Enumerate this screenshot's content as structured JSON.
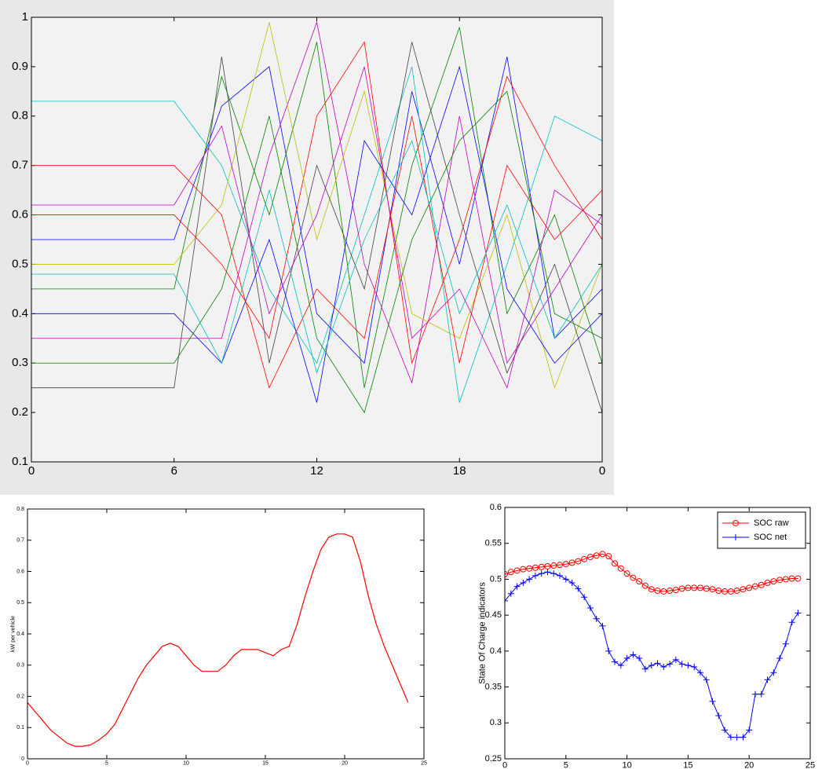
{
  "chart_data": [
    {
      "type": "line",
      "x": [
        0,
        3,
        6,
        8,
        10,
        12,
        14,
        16,
        18,
        20,
        22,
        24
      ],
      "xlim": [
        0,
        24
      ],
      "xticks": [
        0,
        6,
        12,
        18,
        {
          "value": 24,
          "label": "0"
        }
      ],
      "ylim": [
        0.1,
        1
      ],
      "yticks": [
        0.1,
        0.2,
        0.3,
        0.4,
        0.5,
        0.6,
        0.7,
        0.8,
        0.9,
        1
      ],
      "series": [
        {
          "color": "#0000ff",
          "values": [
            0.55,
            0.55,
            0.55,
            0.82,
            0.9,
            0.4,
            0.3,
            0.85,
            0.5,
            0.92,
            0.35,
            0.45
          ]
        },
        {
          "color": "#008000",
          "values": [
            0.45,
            0.45,
            0.45,
            0.88,
            0.6,
            0.95,
            0.25,
            0.7,
            0.98,
            0.4,
            0.6,
            0.3
          ]
        },
        {
          "color": "#ff0000",
          "values": [
            0.6,
            0.6,
            0.6,
            0.5,
            0.35,
            0.8,
            0.95,
            0.3,
            0.55,
            0.88,
            0.7,
            0.55
          ]
        },
        {
          "color": "#00bfbf",
          "values": [
            0.83,
            0.83,
            0.83,
            0.7,
            0.45,
            0.3,
            0.6,
            0.9,
            0.22,
            0.5,
            0.8,
            0.75
          ]
        },
        {
          "color": "#bf00bf",
          "values": [
            0.35,
            0.35,
            0.35,
            0.35,
            0.72,
            0.99,
            0.5,
            0.26,
            0.8,
            0.3,
            0.45,
            0.6
          ]
        },
        {
          "color": "#bfbf00",
          "values": [
            0.5,
            0.5,
            0.5,
            0.62,
            0.99,
            0.55,
            0.85,
            0.4,
            0.35,
            0.6,
            0.25,
            0.5
          ]
        },
        {
          "color": "#404040",
          "values": [
            0.25,
            0.25,
            0.25,
            0.92,
            0.3,
            0.7,
            0.45,
            0.95,
            0.6,
            0.28,
            0.5,
            0.2
          ]
        },
        {
          "color": "#0000ff",
          "values": [
            0.4,
            0.4,
            0.4,
            0.3,
            0.55,
            0.22,
            0.75,
            0.6,
            0.9,
            0.45,
            0.3,
            0.4
          ]
        },
        {
          "color": "#ff0000",
          "values": [
            0.7,
            0.7,
            0.7,
            0.6,
            0.25,
            0.45,
            0.35,
            0.8,
            0.3,
            0.7,
            0.55,
            0.65
          ]
        },
        {
          "color": "#008000",
          "values": [
            0.3,
            0.3,
            0.3,
            0.45,
            0.8,
            0.35,
            0.2,
            0.55,
            0.75,
            0.85,
            0.4,
            0.35
          ]
        },
        {
          "color": "#bf00bf",
          "values": [
            0.62,
            0.62,
            0.62,
            0.78,
            0.4,
            0.6,
            0.9,
            0.35,
            0.45,
            0.25,
            0.65,
            0.58
          ]
        },
        {
          "color": "#00bfbf",
          "values": [
            0.48,
            0.48,
            0.48,
            0.3,
            0.65,
            0.28,
            0.55,
            0.75,
            0.4,
            0.62,
            0.35,
            0.5
          ]
        }
      ]
    },
    {
      "type": "line",
      "y_label": "kW per vehicle",
      "x": [
        0,
        0.5,
        1,
        1.5,
        2,
        2.5,
        3,
        3.5,
        4,
        4.5,
        5,
        5.5,
        6,
        6.5,
        7,
        7.5,
        8,
        8.5,
        9,
        9.5,
        10,
        10.5,
        11,
        11.5,
        12,
        12.5,
        13,
        13.5,
        14,
        14.5,
        15,
        15.5,
        16,
        16.5,
        17,
        17.5,
        18,
        18.5,
        19,
        19.5,
        20,
        20.5,
        21,
        21.5,
        22,
        22.5,
        23,
        23.5,
        24
      ],
      "xlim": [
        0,
        25
      ],
      "xticks": [
        0,
        5,
        10,
        15,
        20,
        25
      ],
      "ylim": [
        0,
        0.8
      ],
      "yticks": [
        0,
        0.1,
        0.2,
        0.3,
        0.4,
        0.5,
        0.6,
        0.7,
        0.8
      ],
      "series": [
        {
          "color": "#ff0000",
          "values": [
            0.18,
            0.15,
            0.12,
            0.09,
            0.07,
            0.05,
            0.04,
            0.04,
            0.045,
            0.06,
            0.08,
            0.11,
            0.16,
            0.21,
            0.26,
            0.3,
            0.33,
            0.36,
            0.37,
            0.36,
            0.33,
            0.3,
            0.28,
            0.28,
            0.28,
            0.3,
            0.33,
            0.35,
            0.35,
            0.35,
            0.34,
            0.33,
            0.35,
            0.36,
            0.43,
            0.52,
            0.6,
            0.67,
            0.71,
            0.72,
            0.72,
            0.71,
            0.63,
            0.52,
            0.43,
            0.36,
            0.3,
            0.24,
            0.18
          ]
        }
      ]
    },
    {
      "type": "line",
      "y_label": "State Of Charge indicators",
      "legend": "upper right",
      "x": [
        0,
        0.5,
        1,
        1.5,
        2,
        2.5,
        3,
        3.5,
        4,
        4.5,
        5,
        5.5,
        6,
        6.5,
        7,
        7.5,
        8,
        8.5,
        9,
        9.5,
        10,
        10.5,
        11,
        11.5,
        12,
        12.5,
        13,
        13.5,
        14,
        14.5,
        15,
        15.5,
        16,
        16.5,
        17,
        17.5,
        18,
        18.5,
        19,
        19.5,
        20,
        20.5,
        21,
        21.5,
        22,
        22.5,
        23,
        23.5,
        24
      ],
      "xlim": [
        0,
        25
      ],
      "xticks": [
        0,
        5,
        10,
        15,
        20,
        25
      ],
      "ylim": [
        0.25,
        0.6
      ],
      "yticks": [
        0.25,
        0.3,
        0.35,
        0.4,
        0.45,
        0.5,
        0.55,
        0.6
      ],
      "series": [
        {
          "name": "SOC raw",
          "color": "#ff0000",
          "marker": "o",
          "values": [
            0.507,
            0.51,
            0.512,
            0.514,
            0.515,
            0.516,
            0.517,
            0.518,
            0.519,
            0.52,
            0.521,
            0.523,
            0.525,
            0.528,
            0.531,
            0.533,
            0.535,
            0.532,
            0.522,
            0.515,
            0.508,
            0.502,
            0.497,
            0.491,
            0.486,
            0.484,
            0.483,
            0.484,
            0.485,
            0.487,
            0.488,
            0.488,
            0.488,
            0.487,
            0.486,
            0.484,
            0.483,
            0.483,
            0.484,
            0.486,
            0.488,
            0.49,
            0.492,
            0.495,
            0.497,
            0.499,
            0.5,
            0.501,
            0.501
          ]
        },
        {
          "name": "SOC net",
          "color": "#0000ff",
          "marker": "+",
          "values": [
            0.47,
            0.48,
            0.49,
            0.495,
            0.5,
            0.505,
            0.508,
            0.51,
            0.508,
            0.505,
            0.5,
            0.495,
            0.487,
            0.475,
            0.46,
            0.445,
            0.435,
            0.4,
            0.385,
            0.38,
            0.39,
            0.395,
            0.39,
            0.375,
            0.38,
            0.383,
            0.378,
            0.382,
            0.388,
            0.382,
            0.38,
            0.378,
            0.37,
            0.36,
            0.33,
            0.31,
            0.29,
            0.28,
            0.28,
            0.28,
            0.29,
            0.34,
            0.34,
            0.36,
            0.37,
            0.39,
            0.41,
            0.44,
            0.453
          ]
        }
      ]
    }
  ]
}
